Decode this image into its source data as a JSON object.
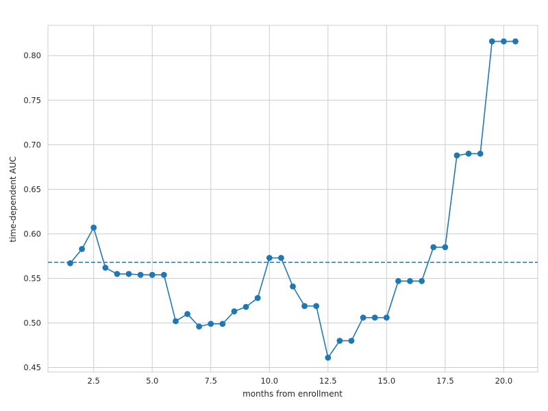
{
  "chart_data": {
    "type": "line",
    "xlabel": "months from enrollment",
    "ylabel": "time-dependent AUC",
    "xlim": [
      0.55,
      21.45
    ],
    "ylim": [
      0.445,
      0.834
    ],
    "grid": true,
    "x_ticks": [
      2.5,
      5.0,
      7.5,
      10.0,
      12.5,
      15.0,
      17.5,
      20.0
    ],
    "x_tick_labels": [
      "2.5",
      "5.0",
      "7.5",
      "10.0",
      "12.5",
      "15.0",
      "17.5",
      "20.0"
    ],
    "y_ticks": [
      0.45,
      0.5,
      0.55,
      0.6,
      0.65,
      0.7,
      0.75,
      0.8
    ],
    "y_tick_labels": [
      "0.45",
      "0.50",
      "0.55",
      "0.60",
      "0.65",
      "0.70",
      "0.75",
      "0.80"
    ],
    "series": [
      {
        "x": [
          1.5,
          2.0,
          2.5,
          3.0,
          3.5,
          4.0,
          4.5,
          5.0,
          5.5,
          6.0,
          6.5,
          7.0,
          7.5,
          8.0,
          8.5,
          9.0,
          9.5,
          10.0,
          10.5,
          11.0,
          11.5,
          12.0,
          12.5,
          13.0,
          13.5,
          14.0,
          14.5,
          15.0,
          15.5,
          16.0,
          16.5,
          17.0,
          17.5,
          18.0,
          18.5,
          19.0,
          19.5,
          20.0,
          20.5
        ],
        "values": [
          0.567,
          0.583,
          0.607,
          0.562,
          0.555,
          0.555,
          0.554,
          0.554,
          0.554,
          0.502,
          0.51,
          0.496,
          0.499,
          0.499,
          0.513,
          0.518,
          0.528,
          0.573,
          0.573,
          0.541,
          0.519,
          0.519,
          0.461,
          0.48,
          0.48,
          0.506,
          0.506,
          0.506,
          0.547,
          0.547,
          0.547,
          0.585,
          0.585,
          0.688,
          0.69,
          0.69,
          0.816,
          0.816,
          0.816
        ],
        "color": "#1f77b4",
        "marker": "circle"
      }
    ],
    "reference_line": {
      "y": 0.568,
      "style": "dashed",
      "color": "#1f77b4"
    },
    "colors": {
      "grid": "#cccccc",
      "spine": "#cccccc",
      "text": "#262626"
    }
  }
}
